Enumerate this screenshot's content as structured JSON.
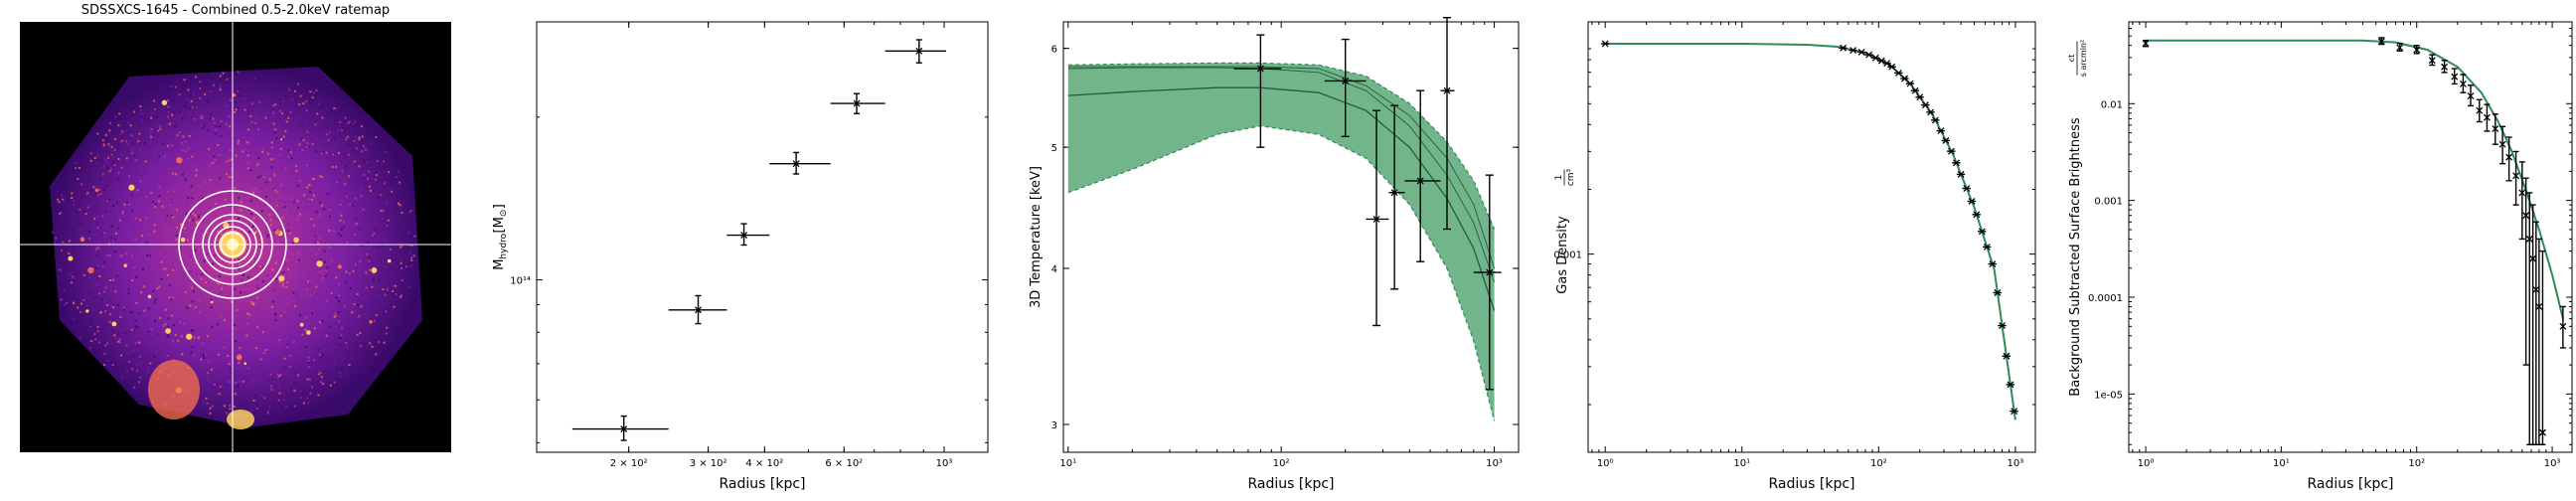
{
  "ratemap": {
    "title": "SDSSXCS-1645 - Combined 0.5-2.0keV ratemap",
    "background_color": "#000000",
    "emission_colors": [
      "#3a0a6b",
      "#7a1fa2",
      "#c2389a",
      "#f06a4e",
      "#ffd060"
    ],
    "overlay_color": "#ffffff"
  },
  "chart_data": [
    {
      "type": "scatter",
      "panel": "hydrostatic-mass",
      "xlabel": "Radius [kpc]",
      "ylabel": "M_hydro [M_⊙]",
      "ylabel_main": "M",
      "ylabel_sub": "hydro",
      "ylabel_unit": "[M",
      "ylabel_unit_sub": "⊙",
      "ylabel_unit_end": "]",
      "x_scale": "log",
      "y_scale": "log",
      "xlim": [
        125,
        1250
      ],
      "ylim": [
        48000000000000.0,
        300000000000000.0
      ],
      "x_ticks": [
        {
          "value": 200,
          "label": "2 × 10²"
        },
        {
          "value": 300,
          "label": "3 × 10²"
        },
        {
          "value": 400,
          "label": "4 × 10²"
        },
        {
          "value": 600,
          "label": "6 × 10²"
        },
        {
          "value": 1000,
          "label": "10³"
        }
      ],
      "y_ticks": [
        {
          "value": 100000000000000.0,
          "label": "10¹⁴"
        }
      ],
      "marker_color": "#000000",
      "points": [
        {
          "x": 195,
          "xlo": 150,
          "xhi": 245,
          "y": 53000000000000.0,
          "ylo": 50500000000000.0,
          "yhi": 56000000000000.0
        },
        {
          "x": 285,
          "xlo": 245,
          "xhi": 330,
          "y": 88000000000000.0,
          "ylo": 83000000000000.0,
          "yhi": 93500000000000.0
        },
        {
          "x": 360,
          "xlo": 330,
          "xhi": 410,
          "y": 121000000000000.0,
          "ylo": 116000000000000.0,
          "yhi": 127000000000000.0
        },
        {
          "x": 470,
          "xlo": 410,
          "xhi": 560,
          "y": 164000000000000.0,
          "ylo": 157000000000000.0,
          "yhi": 172000000000000.0
        },
        {
          "x": 640,
          "xlo": 560,
          "xhi": 740,
          "y": 212000000000000.0,
          "ylo": 203000000000000.0,
          "yhi": 221000000000000.0
        },
        {
          "x": 880,
          "xlo": 740,
          "xhi": 1010,
          "y": 265000000000000.0,
          "ylo": 252000000000000.0,
          "yhi": 278000000000000.0
        }
      ]
    },
    {
      "type": "scatter",
      "panel": "3d-temperature",
      "xlabel": "Radius [kpc]",
      "ylabel": "3D Temperature [keV]",
      "x_scale": "log",
      "y_scale": "log",
      "xlim": [
        9.5,
        1300
      ],
      "ylim": [
        2.85,
        6.3
      ],
      "x_ticks": [
        {
          "value": 10,
          "label": "10¹"
        },
        {
          "value": 100,
          "label": "10²"
        },
        {
          "value": 1000,
          "label": "10³"
        }
      ],
      "y_ticks": [
        {
          "value": 3,
          "label": "3"
        },
        {
          "value": 4,
          "label": "4"
        },
        {
          "value": 5,
          "label": "5"
        },
        {
          "value": 6,
          "label": "6"
        }
      ],
      "model_color": "#2e8b57",
      "band_color": "#5aa877",
      "model": {
        "x": [
          10,
          20,
          50,
          80,
          150,
          250,
          400,
          600,
          800,
          1000
        ],
        "y": [
          5.5,
          5.54,
          5.58,
          5.58,
          5.53,
          5.35,
          5.0,
          4.55,
          4.15,
          3.7
        ],
        "lower": [
          4.6,
          4.8,
          5.12,
          5.2,
          5.12,
          4.9,
          4.5,
          4.0,
          3.5,
          3.02
        ],
        "upper": [
          5.82,
          5.83,
          5.84,
          5.84,
          5.82,
          5.7,
          5.42,
          5.05,
          4.7,
          4.3
        ],
        "sample_lines": [
          [
            5.8,
            5.8,
            5.8,
            5.8,
            5.78,
            5.6,
            5.3,
            4.9,
            4.5,
            4.0
          ],
          [
            5.78,
            5.79,
            5.79,
            5.78,
            5.74,
            5.55,
            5.2,
            4.75,
            4.35,
            3.9
          ]
        ]
      },
      "points": [
        {
          "x": 80,
          "xlo": 60,
          "xhi": 100,
          "y": 5.78,
          "ylo": 5.0,
          "yhi": 6.15
        },
        {
          "x": 200,
          "xlo": 160,
          "xhi": 250,
          "y": 5.65,
          "ylo": 5.1,
          "yhi": 6.1
        },
        {
          "x": 280,
          "xlo": 250,
          "xhi": 320,
          "y": 4.38,
          "ylo": 3.6,
          "yhi": 5.35
        },
        {
          "x": 340,
          "xlo": 320,
          "xhi": 380,
          "y": 4.6,
          "ylo": 3.85,
          "yhi": 5.4
        },
        {
          "x": 450,
          "xlo": 380,
          "xhi": 560,
          "y": 4.7,
          "ylo": 4.05,
          "yhi": 5.55
        },
        {
          "x": 600,
          "xlo": 560,
          "xhi": 650,
          "y": 5.55,
          "ylo": 4.3,
          "yhi": 6.35
        },
        {
          "x": 950,
          "xlo": 800,
          "xhi": 1080,
          "y": 3.97,
          "ylo": 3.2,
          "yhi": 4.75
        }
      ]
    },
    {
      "type": "scatter",
      "panel": "gas-density",
      "xlabel": "Radius [kpc]",
      "ylabel": "Gas Density",
      "ylabel_unit_num": "1",
      "ylabel_unit_den": "cm³",
      "x_scale": "log",
      "y_scale": "log",
      "xlim": [
        0.75,
        1400
      ],
      "ylim": [
        0.00012,
        0.012
      ],
      "x_ticks": [
        {
          "value": 1,
          "label": "10⁰"
        },
        {
          "value": 10,
          "label": "10¹"
        },
        {
          "value": 100,
          "label": "10²"
        },
        {
          "value": 1000,
          "label": "10³"
        }
      ],
      "y_ticks": [
        {
          "value": 0.001,
          "label": "0.001"
        }
      ],
      "model_color": "#2e8b57",
      "model": {
        "x": [
          1,
          3,
          10,
          30,
          50,
          80,
          120,
          170,
          250,
          350,
          500,
          700,
          1000
        ],
        "y": [
          0.0095,
          0.0095,
          0.0095,
          0.0094,
          0.0092,
          0.0086,
          0.0076,
          0.0062,
          0.0044,
          0.0029,
          0.00165,
          0.00085,
          0.00017
        ]
      },
      "points_x": [
        1,
        55,
        65,
        75,
        85,
        95,
        105,
        115,
        125,
        140,
        155,
        170,
        185,
        200,
        220,
        240,
        260,
        285,
        310,
        340,
        370,
        400,
        440,
        480,
        520,
        570,
        620,
        680,
        740,
        800,
        860,
        920,
        980
      ],
      "marker_color": "#000000"
    },
    {
      "type": "scatter",
      "panel": "surface-brightness",
      "xlabel": "Radius [kpc]",
      "ylabel": "Background Subtracted Surface Brightness",
      "ylabel_unit_num": "ct",
      "ylabel_unit_den": "s arcmin²",
      "x_scale": "log",
      "y_scale": "log",
      "xlim": [
        0.75,
        1400
      ],
      "ylim": [
        2.5e-06,
        0.07
      ],
      "x_ticks": [
        {
          "value": 1,
          "label": "10⁰"
        },
        {
          "value": 10,
          "label": "10¹"
        },
        {
          "value": 100,
          "label": "10²"
        },
        {
          "value": 1000,
          "label": "10³"
        }
      ],
      "y_ticks": [
        {
          "value": 0.01,
          "label": "0.01"
        },
        {
          "value": 0.001,
          "label": "0.001"
        },
        {
          "value": 0.0001,
          "label": "0.0001"
        },
        {
          "value": 1e-05,
          "label": "1e-05"
        }
      ],
      "model_color": "#2e8b57",
      "model": {
        "x": [
          1,
          10,
          40,
          70,
          120,
          200,
          300,
          400,
          500,
          650,
          800,
          1000,
          1200
        ],
        "y": [
          0.045,
          0.045,
          0.045,
          0.043,
          0.036,
          0.024,
          0.013,
          0.0065,
          0.0033,
          0.0012,
          0.0005,
          0.00017,
          6e-05
        ]
      },
      "points": [
        {
          "x": 1,
          "y": 0.042,
          "ylo": 0.039,
          "yhi": 0.045
        },
        {
          "x": 55,
          "y": 0.044,
          "ylo": 0.041,
          "yhi": 0.048
        },
        {
          "x": 75,
          "y": 0.038,
          "ylo": 0.035,
          "yhi": 0.042
        },
        {
          "x": 100,
          "y": 0.036,
          "ylo": 0.033,
          "yhi": 0.04
        },
        {
          "x": 130,
          "y": 0.028,
          "ylo": 0.025,
          "yhi": 0.032
        },
        {
          "x": 160,
          "y": 0.024,
          "ylo": 0.021,
          "yhi": 0.028
        },
        {
          "x": 190,
          "y": 0.019,
          "ylo": 0.016,
          "yhi": 0.023
        },
        {
          "x": 220,
          "y": 0.016,
          "ylo": 0.013,
          "yhi": 0.02
        },
        {
          "x": 250,
          "y": 0.012,
          "ylo": 0.0095,
          "yhi": 0.0155
        },
        {
          "x": 290,
          "y": 0.0085,
          "ylo": 0.0065,
          "yhi": 0.011
        },
        {
          "x": 330,
          "y": 0.0072,
          "ylo": 0.0052,
          "yhi": 0.0098
        },
        {
          "x": 380,
          "y": 0.0055,
          "ylo": 0.0038,
          "yhi": 0.0078
        },
        {
          "x": 430,
          "y": 0.0038,
          "ylo": 0.0024,
          "yhi": 0.0058
        },
        {
          "x": 480,
          "y": 0.0028,
          "ylo": 0.0016,
          "yhi": 0.0045
        },
        {
          "x": 540,
          "y": 0.0018,
          "ylo": 0.0009,
          "yhi": 0.0032
        },
        {
          "x": 600,
          "y": 0.0012,
          "ylo": 0.0004,
          "yhi": 0.0025
        },
        {
          "x": 640,
          "y": 0.0007,
          "ylo": 2e-05,
          "yhi": 0.0017
        },
        {
          "x": 680,
          "y": 0.0004,
          "ylo": 3e-06,
          "yhi": 0.0012
        },
        {
          "x": 720,
          "y": 0.00025,
          "ylo": 3e-06,
          "yhi": 0.0009
        },
        {
          "x": 760,
          "y": 0.00012,
          "ylo": 3e-06,
          "yhi": 0.0006
        },
        {
          "x": 800,
          "y": 8e-05,
          "ylo": 3e-06,
          "yhi": 0.0004
        },
        {
          "x": 850,
          "y": 4e-06,
          "ylo": 3e-06,
          "yhi": 0.0003
        },
        {
          "x": 1200,
          "y": 5e-05,
          "ylo": 3e-05,
          "yhi": 8e-05
        }
      ],
      "marker_color": "#000000"
    }
  ]
}
